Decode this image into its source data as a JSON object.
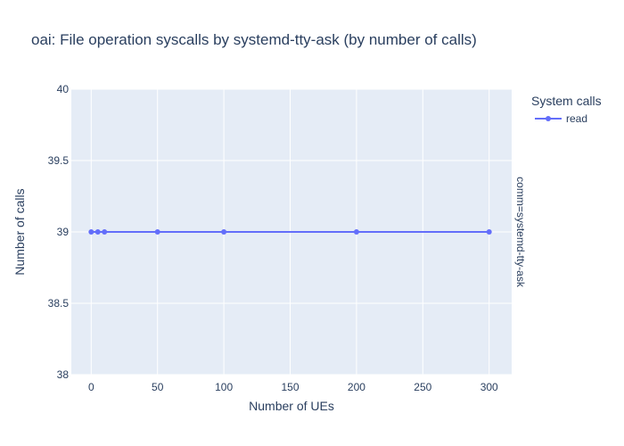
{
  "chart_data": {
    "type": "line",
    "title": "oai: File operation syscalls by systemd-tty-ask (by number of calls)",
    "xlabel": "Number of UEs",
    "ylabel": "Number of calls",
    "x": [
      0,
      5,
      10,
      50,
      100,
      200,
      300
    ],
    "series": [
      {
        "name": "read",
        "values": [
          39,
          39,
          39,
          39,
          39,
          39,
          39
        ],
        "color": "#636efa"
      }
    ],
    "xlim": [
      -15,
      317
    ],
    "ylim": [
      38,
      40
    ],
    "x_ticks": [
      0,
      50,
      100,
      150,
      200,
      250,
      300
    ],
    "y_ticks": [
      38,
      38.5,
      39,
      39.5,
      40
    ],
    "x_tick_labels": [
      "0",
      "50",
      "100",
      "150",
      "200",
      "250",
      "300"
    ],
    "y_tick_labels": [
      "38",
      "38.5",
      "39",
      "39.5",
      "40"
    ],
    "legend_title": "System calls",
    "legend_position": "top-right",
    "facet_label": "comm=systemd-tty-ask",
    "grid": true,
    "plot_bgcolor": "#e5ecf6",
    "grid_color": "#ffffff"
  }
}
